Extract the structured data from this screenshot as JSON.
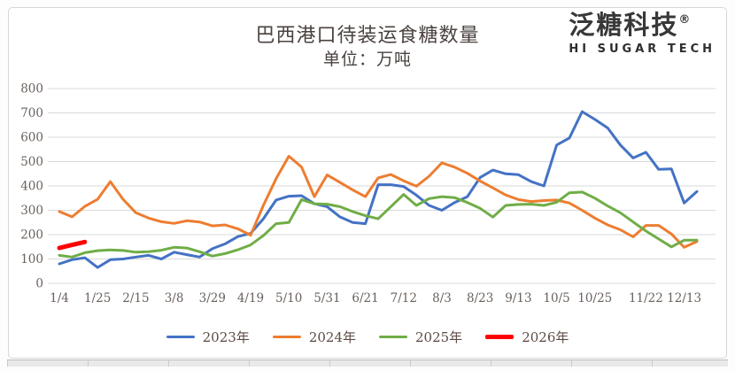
{
  "header": {
    "title": "巴西港口待装运食糖数量",
    "subtitle": "单位：万吨"
  },
  "logo": {
    "text": "泛糖科技",
    "reg": "®",
    "subtext": "HI SUGAR TECH"
  },
  "chart_data": {
    "type": "line",
    "title": "巴西港口待装运食糖数量",
    "unit": "万吨",
    "grid": true,
    "legend_position": "bottom",
    "ylim": [
      0,
      800
    ],
    "y_step": 100,
    "x_tick_labels": [
      "1/4",
      "1/25",
      "2/15",
      "3/8",
      "3/29",
      "4/19",
      "5/10",
      "5/31",
      "6/21",
      "7/12",
      "8/3",
      "8/23",
      "9/13",
      "10/5",
      "10/25",
      "11/22",
      "12/13"
    ],
    "x_tick_indices": [
      0,
      3,
      6,
      9,
      12,
      15,
      18,
      21,
      24,
      27,
      30,
      33,
      36,
      39,
      42,
      46,
      49
    ],
    "series": [
      {
        "name": "2023年",
        "color": "#4472C4",
        "width": 3,
        "values": [
          80,
          97,
          105,
          65,
          97,
          100,
          108,
          115,
          100,
          128,
          118,
          108,
          142,
          162,
          192,
          205,
          265,
          342,
          358,
          360,
          327,
          315,
          273,
          250,
          245,
          405,
          405,
          398,
          362,
          320,
          300,
          332,
          356,
          435,
          465,
          450,
          446,
          418,
          400,
          568,
          597,
          705,
          673,
          638,
          568,
          515,
          538,
          468,
          470,
          330,
          377
        ]
      },
      {
        "name": "2024年",
        "color": "#ED7D31",
        "width": 3,
        "values": [
          295,
          273,
          316,
          345,
          418,
          345,
          290,
          268,
          253,
          246,
          257,
          252,
          236,
          240,
          224,
          198,
          320,
          430,
          522,
          477,
          356,
          445,
          415,
          384,
          356,
          433,
          447,
          421,
          399,
          440,
          495,
          477,
          452,
          420,
          392,
          363,
          344,
          336,
          340,
          342,
          330,
          300,
          268,
          240,
          220,
          191,
          238,
          238,
          203,
          148,
          172
        ]
      },
      {
        "name": "2025年",
        "color": "#70AD47",
        "width": 3,
        "values": [
          115,
          108,
          126,
          134,
          137,
          135,
          128,
          130,
          136,
          148,
          145,
          130,
          112,
          122,
          138,
          158,
          196,
          245,
          250,
          344,
          327,
          325,
          315,
          295,
          278,
          265,
          315,
          365,
          320,
          348,
          356,
          352,
          332,
          308,
          272,
          320,
          324,
          325,
          320,
          333,
          372,
          375,
          350,
          318,
          290,
          252,
          215,
          182,
          150,
          177,
          177
        ]
      },
      {
        "name": "2026年",
        "color": "#FF0000",
        "width": 5,
        "values": [
          145,
          158,
          170
        ]
      }
    ]
  }
}
